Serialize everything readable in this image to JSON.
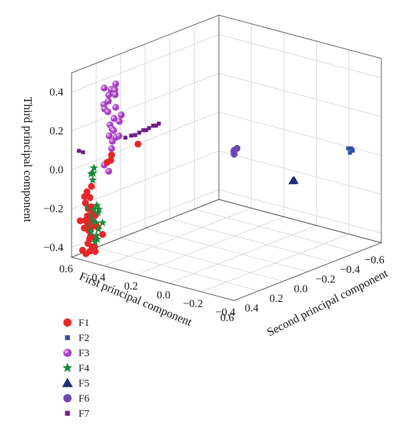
{
  "chart_data": {
    "type": "scatter3d",
    "axes": {
      "x": {
        "label": "First principal component",
        "ticks": [
          "−0.6",
          "−0.4",
          "−0.2",
          "0.0",
          "0.2",
          "0.4",
          "0.6"
        ],
        "range": [
          -0.6,
          0.6
        ]
      },
      "y": {
        "label": "Second principal component",
        "ticks": [
          "−0.4",
          "−0.2",
          "0.0",
          "0.2",
          "0.4",
          "0.6"
        ],
        "range": [
          -0.4,
          0.6
        ]
      },
      "z": {
        "label": "Third principal component",
        "ticks": [
          "−0.4",
          "−0.2",
          "0.0",
          "0.2",
          "0.4"
        ],
        "range": [
          -0.45,
          0.5
        ]
      }
    },
    "grid": true,
    "legend_position": "bottom-left",
    "series": [
      {
        "name": "F1",
        "marker": "circle",
        "color": "#e8262a",
        "points": [
          [
            0.5,
            0.55,
            -0.27
          ],
          [
            0.52,
            0.56,
            -0.29
          ],
          [
            0.48,
            0.53,
            -0.31
          ],
          [
            0.5,
            0.57,
            -0.33
          ],
          [
            0.51,
            0.55,
            -0.35
          ],
          [
            0.49,
            0.54,
            -0.37
          ],
          [
            0.52,
            0.56,
            -0.39
          ],
          [
            0.5,
            0.55,
            -0.41
          ],
          [
            0.48,
            0.58,
            -0.38
          ],
          [
            0.53,
            0.54,
            -0.36
          ],
          [
            0.47,
            0.55,
            -0.3
          ],
          [
            0.51,
            0.59,
            -0.32
          ],
          [
            0.48,
            0.5,
            -0.34
          ],
          [
            0.52,
            0.52,
            -0.4
          ],
          [
            0.5,
            0.53,
            -0.43
          ],
          [
            0.55,
            0.57,
            -0.42
          ],
          [
            0.46,
            0.56,
            -0.26
          ],
          [
            0.53,
            0.6,
            -0.28
          ],
          [
            0.49,
            0.57,
            -0.44
          ],
          [
            0.51,
            0.58,
            -0.45
          ],
          [
            0.57,
            0.5,
            -0.07
          ],
          [
            0.58,
            0.52,
            -0.1
          ],
          [
            0.57,
            0.51,
            -0.13
          ],
          [
            0.58,
            0.53,
            -0.16
          ],
          [
            0.57,
            0.52,
            -0.19
          ],
          [
            0.59,
            0.51,
            -0.22
          ],
          [
            0.58,
            0.53,
            -0.25
          ],
          [
            0.57,
            0.5,
            -0.28
          ],
          [
            0.55,
            0.53,
            -0.24
          ],
          [
            0.56,
            0.51,
            -0.18
          ],
          [
            0.6,
            0.52,
            -0.12
          ],
          [
            0.58,
            0.49,
            -0.2
          ],
          [
            0.35,
            0.38,
            0.12
          ],
          [
            0.38,
            0.52,
            0.04
          ],
          [
            0.4,
            0.51,
            0.02
          ],
          [
            0.39,
            0.54,
            0.0
          ]
        ]
      },
      {
        "name": "F2",
        "marker": "square",
        "color": "#2f4fa5",
        "points": [
          [
            -0.42,
            -0.35,
            0.07
          ],
          [
            -0.41,
            -0.34,
            0.07
          ],
          [
            -0.43,
            -0.35,
            0.06
          ],
          [
            -0.42,
            -0.36,
            0.06
          ],
          [
            -0.41,
            -0.35,
            0.05
          ]
        ]
      },
      {
        "name": "F3",
        "marker": "ball",
        "color": "#a83cc4",
        "points": [
          [
            0.4,
            0.48,
            0.42
          ],
          [
            0.41,
            0.5,
            0.39
          ],
          [
            0.39,
            0.49,
            0.36
          ],
          [
            0.42,
            0.51,
            0.33
          ],
          [
            0.4,
            0.48,
            0.3
          ],
          [
            0.41,
            0.52,
            0.27
          ],
          [
            0.4,
            0.49,
            0.24
          ],
          [
            0.42,
            0.5,
            0.21
          ],
          [
            0.39,
            0.51,
            0.18
          ],
          [
            0.41,
            0.47,
            0.15
          ],
          [
            0.4,
            0.5,
            0.12
          ],
          [
            0.42,
            0.49,
            0.09
          ],
          [
            0.38,
            0.46,
            0.26
          ],
          [
            0.43,
            0.53,
            0.31
          ],
          [
            0.38,
            0.5,
            0.38
          ],
          [
            0.44,
            0.52,
            0.4
          ],
          [
            0.37,
            0.48,
            0.22
          ],
          [
            0.43,
            0.47,
            0.19
          ],
          [
            0.39,
            0.53,
            0.35
          ],
          [
            0.41,
            0.54,
            0.28
          ],
          [
            0.48,
            0.49,
            0.02
          ],
          [
            0.47,
            0.47,
            -0.01
          ],
          [
            0.44,
            0.49,
            0.16
          ],
          [
            0.36,
            0.49,
            0.14
          ]
        ]
      },
      {
        "name": "F4",
        "marker": "star",
        "color": "#1b8a3b",
        "points": [
          [
            0.5,
            0.52,
            -0.19
          ],
          [
            0.51,
            0.53,
            -0.21
          ],
          [
            0.49,
            0.52,
            -0.23
          ],
          [
            0.5,
            0.55,
            -0.25
          ],
          [
            0.52,
            0.53,
            -0.27
          ],
          [
            0.48,
            0.54,
            -0.29
          ],
          [
            0.5,
            0.51,
            -0.31
          ],
          [
            0.51,
            0.55,
            -0.33
          ],
          [
            0.49,
            0.53,
            -0.35
          ],
          [
            0.53,
            0.52,
            -0.24
          ],
          [
            0.47,
            0.53,
            -0.22
          ],
          [
            0.52,
            0.55,
            -0.3
          ],
          [
            0.48,
            0.5,
            -0.28
          ],
          [
            0.51,
            0.51,
            -0.36
          ],
          [
            0.53,
            0.55,
            -0.2
          ],
          [
            0.5,
            0.53,
            -0.38
          ],
          [
            0.55,
            0.5,
            0.02
          ],
          [
            0.56,
            0.51,
            -0.01
          ],
          [
            0.56,
            0.5,
            -0.04
          ],
          [
            0.57,
            0.49,
            0.0
          ]
        ]
      },
      {
        "name": "F5",
        "marker": "triangle",
        "color": "#1f2f78",
        "points": [
          [
            -0.22,
            -0.15,
            -0.09
          ],
          [
            -0.21,
            -0.15,
            -0.09
          ]
        ]
      },
      {
        "name": "F6",
        "marker": "circle",
        "color": "#7046b3",
        "points": [
          [
            -0.02,
            0.05,
            0.08
          ],
          [
            -0.01,
            0.06,
            0.07
          ],
          [
            -0.02,
            0.07,
            0.06
          ],
          [
            -0.01,
            0.06,
            0.05
          ]
        ]
      },
      {
        "name": "F7",
        "marker": "square",
        "color": "#6d1f86",
        "points": [
          [
            0.22,
            0.35,
            0.2
          ],
          [
            0.24,
            0.37,
            0.19
          ],
          [
            0.26,
            0.38,
            0.18
          ],
          [
            0.28,
            0.4,
            0.17
          ],
          [
            0.3,
            0.41,
            0.16
          ],
          [
            0.32,
            0.42,
            0.15
          ],
          [
            0.34,
            0.43,
            0.15
          ],
          [
            0.36,
            0.45,
            0.14
          ],
          [
            0.23,
            0.36,
            0.19
          ],
          [
            0.27,
            0.39,
            0.17
          ],
          [
            0.58,
            0.57,
            0.1
          ],
          [
            0.56,
            0.56,
            0.09
          ]
        ]
      }
    ]
  }
}
